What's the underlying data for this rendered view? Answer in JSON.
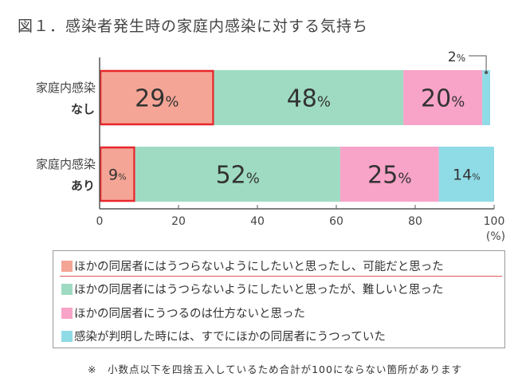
{
  "title": "図１．感染者発生時の家庭内感染に対する気持ち",
  "note": "※　小数点以下を四捨五入しているため合計が100にならない箇所があります",
  "colors": {
    "salmon": "#f4a596",
    "green": "#9fdbc3",
    "pink": "#f8a3c8",
    "cyan": "#8fdbe6",
    "highlight": "#e8262b"
  },
  "chart_data": {
    "type": "bar",
    "orientation": "horizontal",
    "stacked": true,
    "categories": [
      {
        "line1": "家庭内感染",
        "line2": "なし"
      },
      {
        "line1": "家庭内感染",
        "line2": "あり"
      }
    ],
    "series": [
      {
        "name": "ほかの同居者にはうつらないようにしたいと思ったし、可能だと思った",
        "color": "#f4a596",
        "values": [
          29,
          9
        ],
        "labels": [
          "29%",
          "9%"
        ],
        "highlighted": true
      },
      {
        "name": "ほかの同居者にはうつらないようにしたいと思ったが、難しいと思った",
        "color": "#9fdbc3",
        "values": [
          48,
          52
        ],
        "labels": [
          "48%",
          "52%"
        ]
      },
      {
        "name": "ほかの同居者にうつるのは仕方ないと思った",
        "color": "#f8a3c8",
        "values": [
          20,
          25
        ],
        "labels": [
          "20%",
          "25%"
        ]
      },
      {
        "name": "感染が判明した時には、すでにほかの同居者にうつっていた",
        "color": "#8fdbe6",
        "values": [
          2,
          14
        ],
        "labels": [
          "",
          "14%"
        ]
      }
    ],
    "callout": "2%",
    "x_ticks": [
      "0",
      "20",
      "40",
      "60",
      "80",
      "100"
    ],
    "xlim": [
      0,
      100
    ],
    "x_unit": "(%)",
    "grid": false,
    "legend_position": "bottom"
  }
}
